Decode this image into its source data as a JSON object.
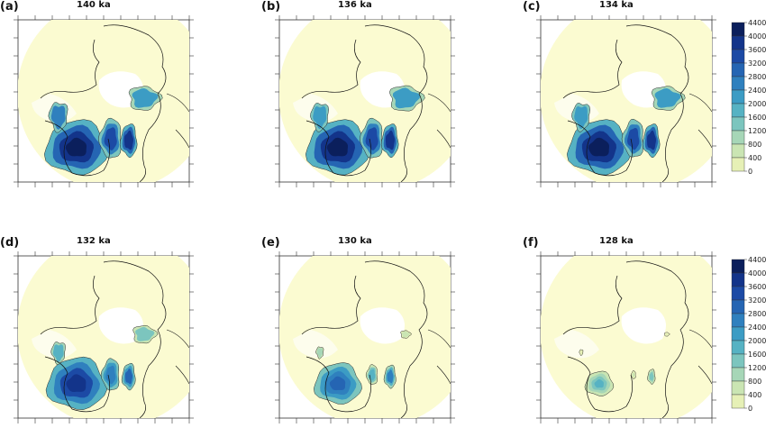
{
  "panels": [
    {
      "letter": "(a)",
      "title": "140 ka",
      "ice": [
        1.0,
        1.0,
        1.0,
        0.95,
        1.0
      ]
    },
    {
      "letter": "(b)",
      "title": "136 ka",
      "ice": [
        1.0,
        1.0,
        1.0,
        1.0,
        0.95
      ]
    },
    {
      "letter": "(c)",
      "title": "134 ka",
      "ice": [
        1.0,
        0.95,
        1.0,
        0.95,
        0.95
      ]
    },
    {
      "letter": "(d)",
      "title": "132 ka",
      "ice": [
        0.95,
        0.8,
        0.8,
        0.7,
        0.75
      ]
    },
    {
      "letter": "(e)",
      "title": "130 ka",
      "ice": [
        0.75,
        0.5,
        0.7,
        0.3,
        0.4
      ]
    },
    {
      "letter": "(f)",
      "title": "128 ka",
      "ice": [
        0.45,
        0.2,
        0.45,
        0.15,
        0.2
      ]
    }
  ],
  "colorbar": {
    "ticks": [
      "4400",
      "4000",
      "3600",
      "3200",
      "2800",
      "2400",
      "2000",
      "1600",
      "1200",
      "800",
      "400",
      "0"
    ],
    "colors": [
      "#0b1f5c",
      "#13348a",
      "#1c4aa5",
      "#2565b3",
      "#2f80be",
      "#3c9cc4",
      "#56b2c3",
      "#7cc5be",
      "#a6d6b7",
      "#cae5b3",
      "#e6f0b6",
      "#fbfbd1"
    ]
  },
  "colors": {
    "background_land": "#fbfbd1",
    "coast": "#111111",
    "axis": "#333333"
  }
}
